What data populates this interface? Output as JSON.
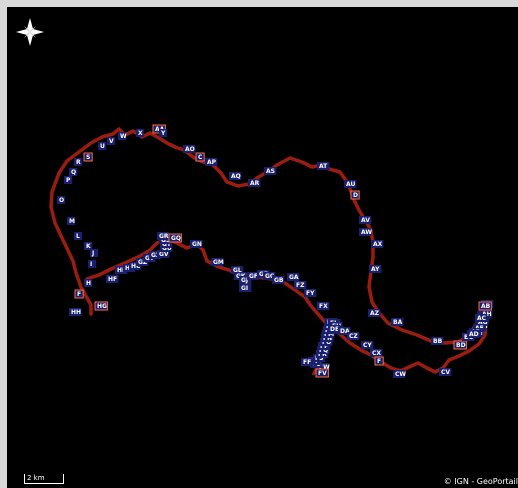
{
  "map": {
    "compass_icon": "compass-rose-icon",
    "track_color": "#9b1c10",
    "marker_fill": "#1a1f6e",
    "marker_border": "#ff6a3d",
    "scale_label": "2 km",
    "attribution": "© IGN - GeoPortail",
    "waypoints": [
      "AA",
      "Y",
      "X",
      "W",
      "V",
      "U",
      "S",
      "R",
      "Q",
      "P",
      "O",
      "M",
      "L",
      "K",
      "J",
      "I",
      "H",
      "F",
      "HH",
      "HG",
      "HF",
      "HE",
      "HD",
      "HC",
      "GZ",
      "GY",
      "GX",
      "GV",
      "GU",
      "GT",
      "GS",
      "GR",
      "GQ",
      "GN",
      "GM",
      "GL",
      "GK",
      "GJ",
      "GI",
      "GF",
      "GD",
      "GC",
      "GB",
      "GA",
      "FZ",
      "FY",
      "FX",
      "FW",
      "FV",
      "FU",
      "FT",
      "FS",
      "FR",
      "FQ",
      "FP",
      "FO",
      "FN",
      "FM",
      "FL",
      "FK",
      "FJ",
      "FI",
      "FH",
      "FG",
      "FF",
      "DB",
      "DA",
      "CZ",
      "CY",
      "CX",
      "CW",
      "CV",
      "BD",
      "BC",
      "BB",
      "BA",
      "AZ",
      "AY",
      "AX",
      "AW",
      "AV",
      "D",
      "AU",
      "AT",
      "AS",
      "AR",
      "AQ",
      "AP",
      "C",
      "AO",
      "AN",
      "AM",
      "AL",
      "AK",
      "AJ",
      "AI",
      "AH",
      "AG",
      "AF",
      "AE",
      "AD",
      "AC",
      "AB"
    ]
  }
}
